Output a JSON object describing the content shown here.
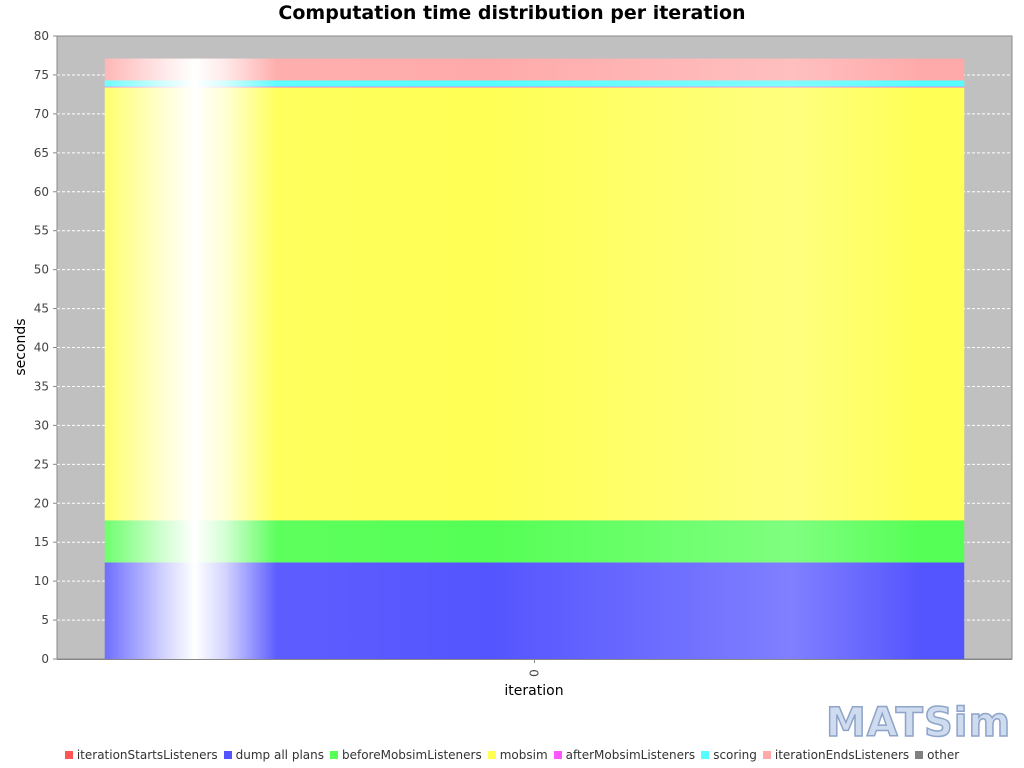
{
  "chart_data": {
    "type": "bar",
    "stacked": true,
    "title": "Computation time distribution per iteration",
    "xlabel": "iteration",
    "ylabel": "seconds",
    "categories": [
      "0"
    ],
    "ylim": [
      0,
      80
    ],
    "yticks": [
      0,
      5,
      10,
      15,
      20,
      25,
      30,
      35,
      40,
      45,
      50,
      55,
      60,
      65,
      70,
      75,
      80
    ],
    "grid": true,
    "legend_position": "bottom",
    "series": [
      {
        "name": "iterationStartsListeners",
        "color": "#ff5555",
        "values": [
          0
        ]
      },
      {
        "name": "dump all plans",
        "color": "#5555ff",
        "values": [
          12.4
        ]
      },
      {
        "name": "beforeMobsimListeners",
        "color": "#55ff55",
        "values": [
          5.4
        ]
      },
      {
        "name": "mobsim",
        "color": "#ffff55",
        "values": [
          55.6
        ]
      },
      {
        "name": "afterMobsimListeners",
        "color": "#ff55ff",
        "values": [
          0.1
        ]
      },
      {
        "name": "scoring",
        "color": "#55ffff",
        "values": [
          0.8
        ]
      },
      {
        "name": "iterationEndsListeners",
        "color": "#ffaaaa",
        "values": [
          2.8
        ]
      },
      {
        "name": "other",
        "color": "#808080",
        "values": [
          0
        ]
      }
    ]
  },
  "logo_text": "MATSim"
}
